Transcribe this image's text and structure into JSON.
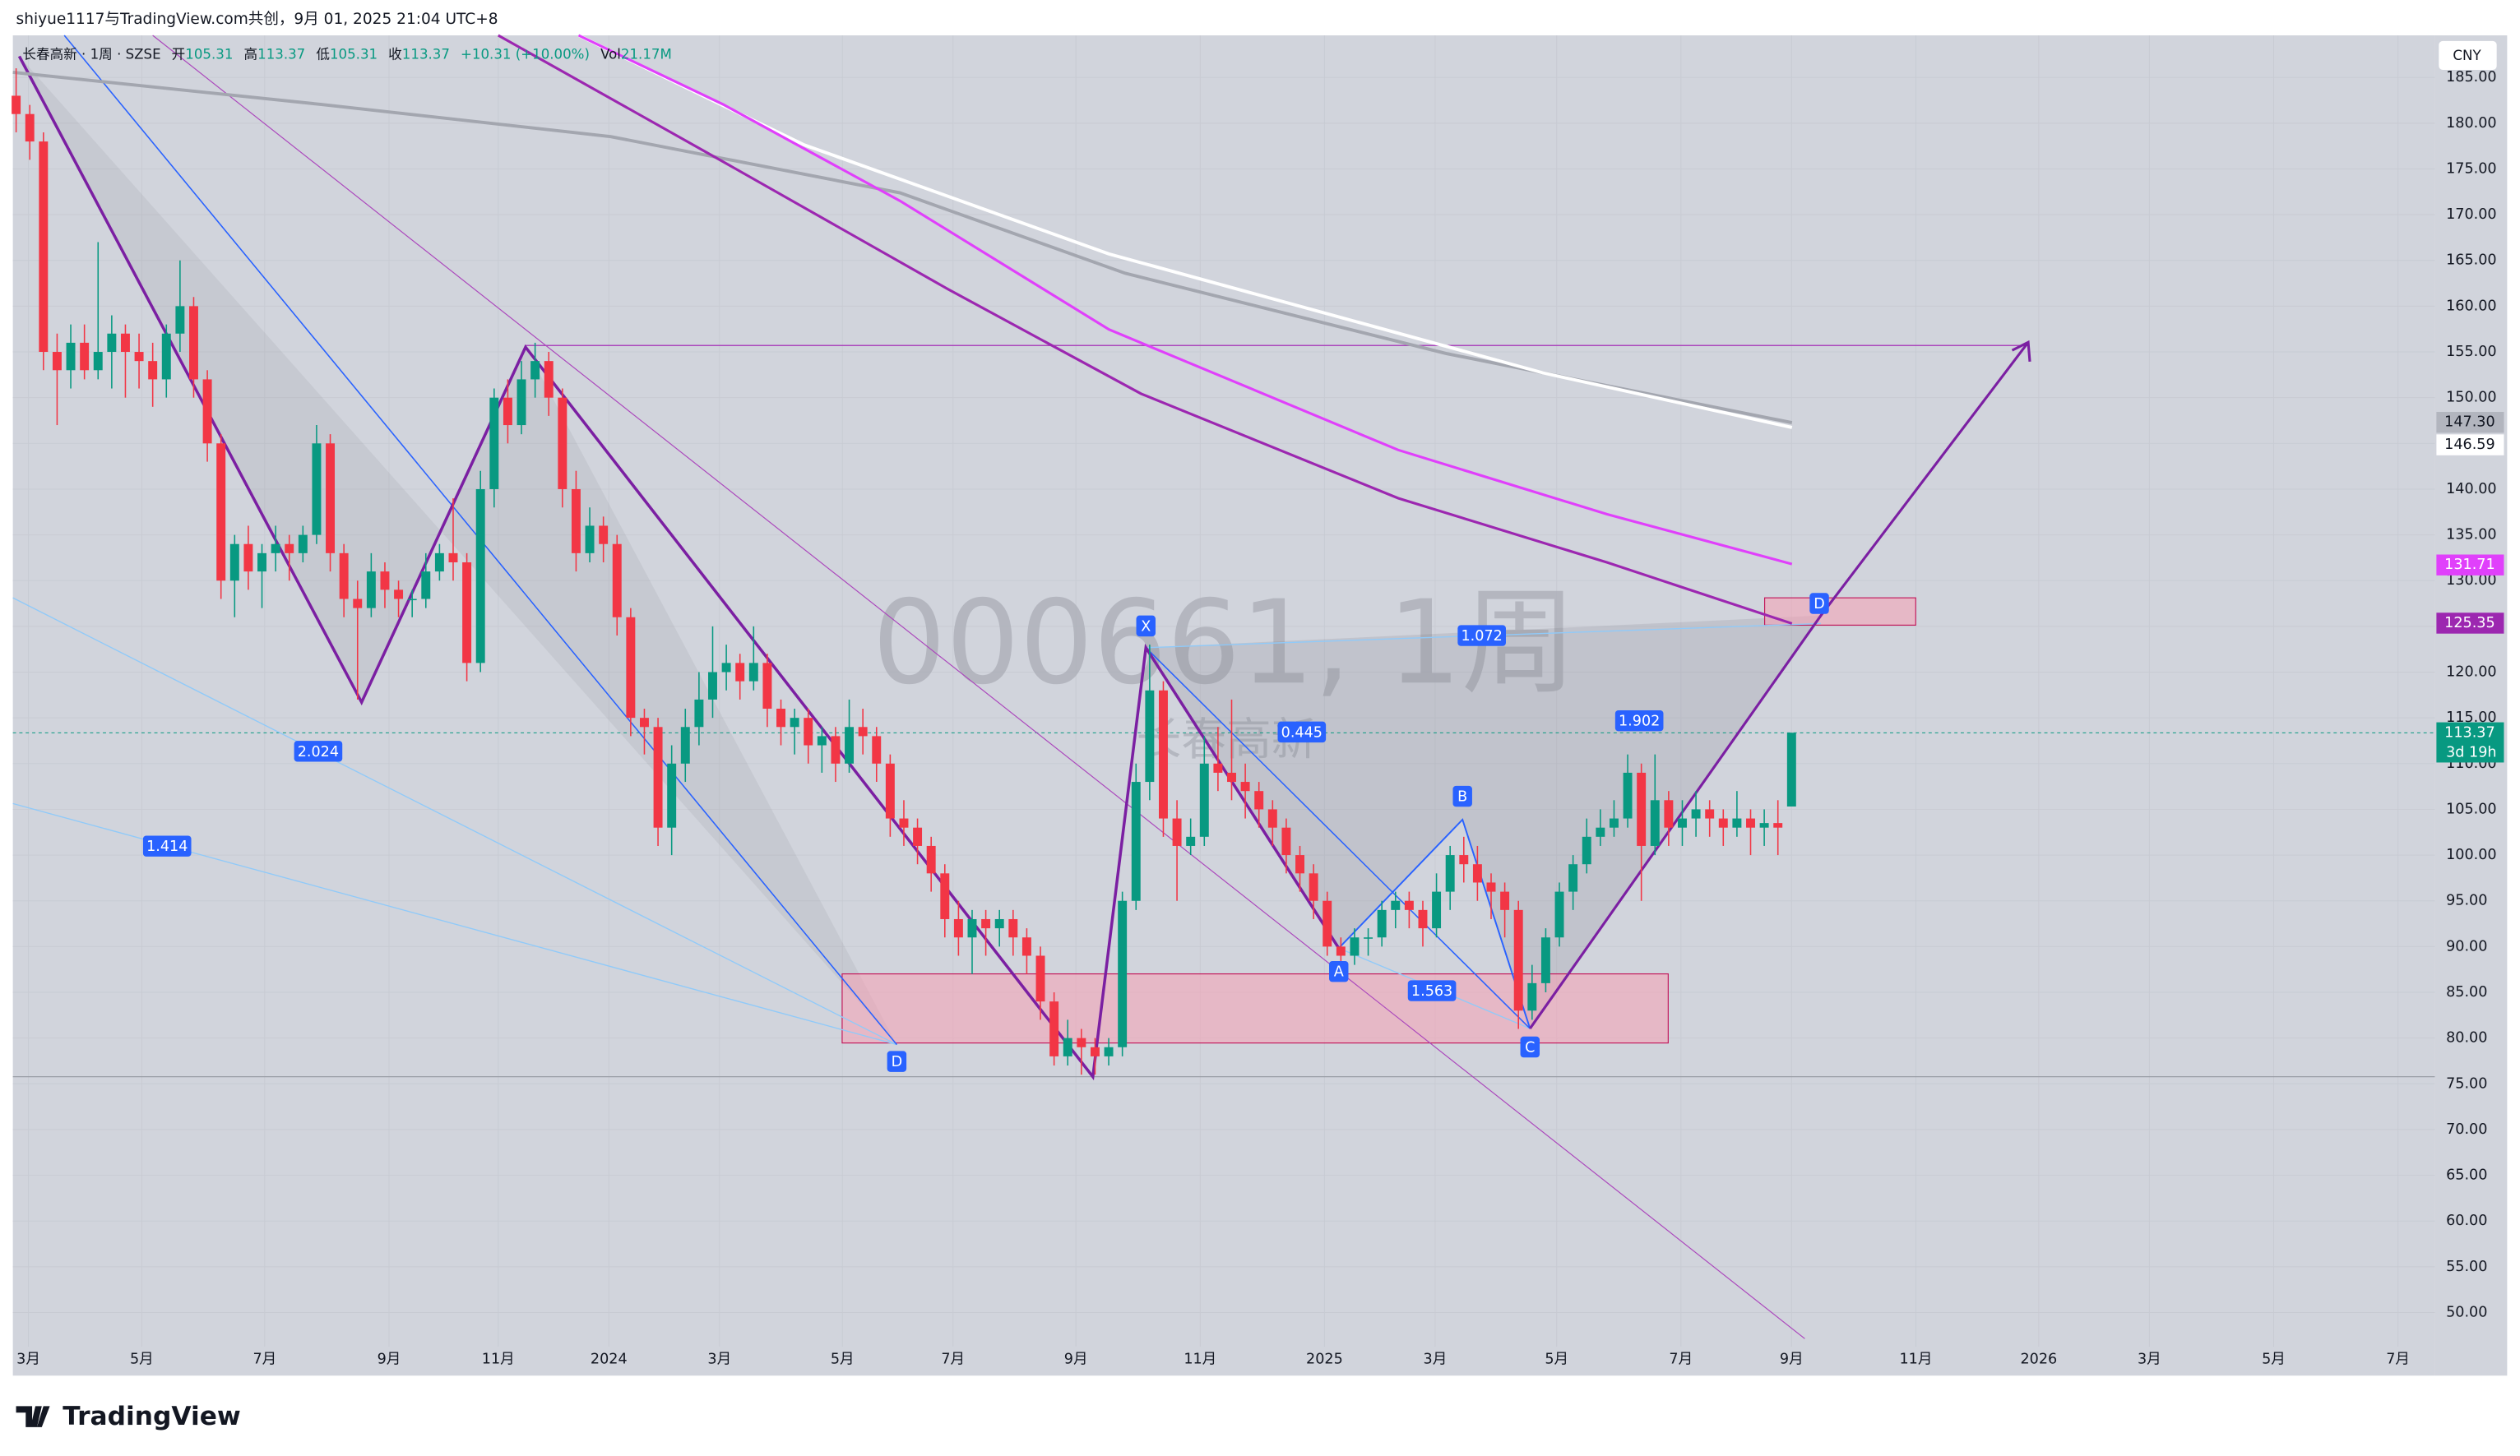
{
  "header": {
    "attribution": "shiyue1117与TradingView.com共创，9月 01, 2025 21:04 UTC+8",
    "symbol": "长春高新 · 1周 · SZSE",
    "open_label": "开",
    "open": "105.31",
    "high_label": "高",
    "high": "113.37",
    "low_label": "低",
    "low": "105.31",
    "close_label": "收",
    "close": "113.37",
    "change": "+10.31 (+10.00%)",
    "vol_label": "Vol",
    "vol": "21.17M",
    "currency": "CNY",
    "logo": "TradingView",
    "watermark": "000661, 1周",
    "watermark_sub": "长春高新"
  },
  "annotations": {
    "fib": [
      "2.024",
      "1.414",
      "1.072",
      "0.445",
      "1.563",
      "1.902"
    ],
    "points": [
      "X",
      "A",
      "B",
      "C",
      "D",
      "D"
    ],
    "countdown": "3d 19h"
  },
  "chart_data": {
    "type": "candlestick",
    "open": [
      183,
      181,
      178,
      155,
      153,
      156,
      153,
      155,
      157,
      155,
      154,
      152,
      157,
      160,
      152,
      145,
      130,
      134,
      131,
      133,
      134,
      133,
      135,
      145,
      133,
      128,
      127,
      131,
      129,
      128,
      128,
      131,
      133,
      132,
      121,
      140,
      150,
      147,
      152,
      154,
      150,
      140,
      133,
      136,
      134,
      126,
      115,
      114,
      103,
      110,
      114,
      117,
      120,
      121,
      119,
      121,
      116,
      114,
      115,
      112,
      113,
      110,
      114,
      113,
      110,
      104,
      103,
      101,
      98,
      93,
      91,
      93,
      92,
      93,
      91,
      89,
      84,
      78,
      80,
      79,
      78,
      79,
      95,
      108,
      118,
      104,
      101,
      102,
      110,
      109,
      108,
      107,
      105,
      103,
      100,
      98,
      95,
      90,
      89,
      91,
      91,
      94,
      95,
      94,
      92,
      96,
      100,
      99,
      97,
      96,
      94,
      83,
      86,
      91,
      96,
      99,
      102,
      103,
      104,
      109,
      101,
      106,
      103,
      104,
      105,
      104,
      103,
      104,
      103,
      103.5,
      105.31
    ],
    "high": [
      186,
      182,
      179,
      157,
      158,
      158,
      167,
      159,
      158,
      157,
      156,
      158,
      165,
      161,
      153,
      146,
      135,
      136,
      134,
      136,
      135,
      136,
      147,
      146,
      134,
      130,
      133,
      132,
      130,
      129,
      133,
      134,
      139,
      133,
      142,
      151,
      152,
      154,
      156,
      155,
      151,
      142,
      138,
      137,
      135,
      127,
      116,
      115,
      112,
      116,
      120,
      125,
      123,
      122,
      125,
      122,
      117,
      116,
      116,
      114,
      114,
      117,
      116,
      114,
      111,
      106,
      104,
      102,
      99,
      95,
      94,
      94,
      94,
      94,
      92,
      90,
      85,
      82,
      81,
      80,
      80,
      96,
      110,
      123,
      119,
      106,
      104,
      113,
      114,
      117,
      110,
      108,
      106,
      104,
      101,
      99,
      96,
      91,
      92,
      92,
      95,
      96,
      96,
      95,
      98,
      101,
      102,
      101,
      98,
      97,
      95,
      88,
      92,
      97,
      100,
      104,
      105,
      106,
      111,
      110,
      111,
      107,
      106,
      107,
      106,
      105,
      107,
      105,
      105,
      106,
      113.37
    ],
    "low": [
      179,
      176,
      153,
      147,
      151,
      152,
      152,
      151,
      150,
      151,
      149,
      150,
      155,
      150,
      143,
      128,
      126,
      129,
      127,
      131,
      130,
      132,
      134,
      131,
      126,
      117,
      126,
      127,
      126,
      126,
      127,
      130,
      130,
      119,
      120,
      138,
      145,
      146,
      150,
      148,
      138,
      131,
      132,
      132,
      124,
      113,
      111,
      101,
      100,
      108,
      112,
      115,
      118,
      117,
      118,
      114,
      112,
      111,
      110,
      109,
      108,
      109,
      111,
      108,
      102,
      101,
      99,
      96,
      91,
      89,
      87,
      89,
      90,
      89,
      87,
      82,
      77,
      77,
      76,
      76,
      77,
      78,
      94,
      106,
      102,
      95,
      100,
      101,
      107,
      106,
      104,
      103,
      101,
      98,
      96,
      93,
      89,
      88,
      88,
      89,
      90,
      92,
      92,
      90,
      91,
      94,
      97,
      95,
      93,
      91,
      81,
      82,
      85,
      90,
      94,
      98,
      101,
      102,
      103,
      95,
      100,
      101,
      101,
      102,
      102,
      101,
      102,
      100,
      101,
      100,
      105.31
    ],
    "close": [
      181,
      178,
      155,
      153,
      156,
      153,
      155,
      157,
      155,
      154,
      152,
      157,
      160,
      152,
      145,
      130,
      134,
      131,
      133,
      134,
      133,
      135,
      145,
      133,
      128,
      127,
      131,
      129,
      128,
      128,
      131,
      133,
      132,
      121,
      140,
      150,
      147,
      152,
      154,
      150,
      140,
      133,
      136,
      134,
      126,
      115,
      114,
      103,
      110,
      114,
      117,
      120,
      121,
      119,
      121,
      116,
      114,
      115,
      112,
      113,
      110,
      114,
      113,
      110,
      104,
      103,
      101,
      98,
      93,
      91,
      93,
      92,
      93,
      91,
      89,
      84,
      78,
      80,
      79,
      78,
      79,
      95,
      108,
      118,
      104,
      101,
      102,
      110,
      109,
      108,
      107,
      105,
      103,
      100,
      98,
      95,
      90,
      89,
      91,
      91,
      94,
      95,
      94,
      92,
      96,
      100,
      99,
      97,
      96,
      94,
      83,
      86,
      91,
      96,
      99,
      102,
      103,
      104,
      109,
      101,
      106,
      103,
      104,
      105,
      104,
      103,
      104,
      103,
      103.5,
      103,
      113.37
    ],
    "up_color": "#089981",
    "down_color": "#f23645",
    "xlim": [
      -0.24,
      177.1
    ],
    "ylim": [
      43.1,
      189.6
    ],
    "xticks": [
      {
        "value": 0.9,
        "label": "3月"
      },
      {
        "value": 9.2,
        "label": "5月"
      },
      {
        "value": 18.2,
        "label": "7月"
      },
      {
        "value": 27.3,
        "label": "9月"
      },
      {
        "value": 35.3,
        "label": "11月"
      },
      {
        "value": 43.4,
        "label": "2024"
      },
      {
        "value": 51.5,
        "label": "3月"
      },
      {
        "value": 60.5,
        "label": "5月"
      },
      {
        "value": 68.6,
        "label": "7月"
      },
      {
        "value": 77.6,
        "label": "9月"
      },
      {
        "value": 86.7,
        "label": "11月"
      },
      {
        "value": 95.8,
        "label": "2025"
      },
      {
        "value": 103.9,
        "label": "3月"
      },
      {
        "value": 112.8,
        "label": "5月"
      },
      {
        "value": 121.9,
        "label": "7月"
      },
      {
        "value": 130,
        "label": "9月"
      },
      {
        "value": 139.1,
        "label": "11月"
      },
      {
        "value": 148.1,
        "label": "2026"
      },
      {
        "value": 156.2,
        "label": "3月"
      },
      {
        "value": 165.3,
        "label": "5月"
      },
      {
        "value": 174.4,
        "label": "7月"
      }
    ],
    "yticks": [
      {
        "value": 50,
        "label": "50.00"
      },
      {
        "value": 55,
        "label": "55.00"
      },
      {
        "value": 60,
        "label": "60.00"
      },
      {
        "value": 65,
        "label": "65.00"
      },
      {
        "value": 70,
        "label": "70.00"
      },
      {
        "value": 75,
        "label": "75.00"
      },
      {
        "value": 80,
        "label": "80.00"
      },
      {
        "value": 85,
        "label": "85.00"
      },
      {
        "value": 90,
        "label": "90.00"
      },
      {
        "value": 95,
        "label": "95.00"
      },
      {
        "value": 100,
        "label": "100.00"
      },
      {
        "value": 105,
        "label": "105.00"
      },
      {
        "value": 110,
        "label": "110.00"
      },
      {
        "value": 115,
        "label": "115.00"
      },
      {
        "value": 120,
        "label": "120.00"
      },
      {
        "value": 125,
        "label": "125.00"
      },
      {
        "value": 130,
        "label": "130.00"
      },
      {
        "value": 135,
        "label": "135.00"
      },
      {
        "value": 140,
        "label": "140.00"
      },
      {
        "value": 145,
        "label": "145.00"
      },
      {
        "value": 150,
        "label": "150.00"
      },
      {
        "value": 155,
        "label": "155.00"
      },
      {
        "value": 160,
        "label": "160.00"
      },
      {
        "value": 165,
        "label": "165.00"
      },
      {
        "value": 170,
        "label": "170.00"
      },
      {
        "value": 175,
        "label": "175.00"
      },
      {
        "value": 180,
        "label": "180.00"
      },
      {
        "value": 185,
        "label": "185.00"
      }
    ],
    "price_labels": [
      {
        "value": 147.3,
        "label": "147.30",
        "color": "#b2b5be"
      },
      {
        "value": 146.59,
        "label": "146.59",
        "color": "#ffffff"
      },
      {
        "value": 131.71,
        "label": "131.71",
        "color": "#e040fb"
      },
      {
        "value": 125.35,
        "label": "125.35",
        "color": "#9c27b0"
      },
      {
        "value": 113.37,
        "label": "113.37",
        "color": "#089981"
      }
    ]
  }
}
